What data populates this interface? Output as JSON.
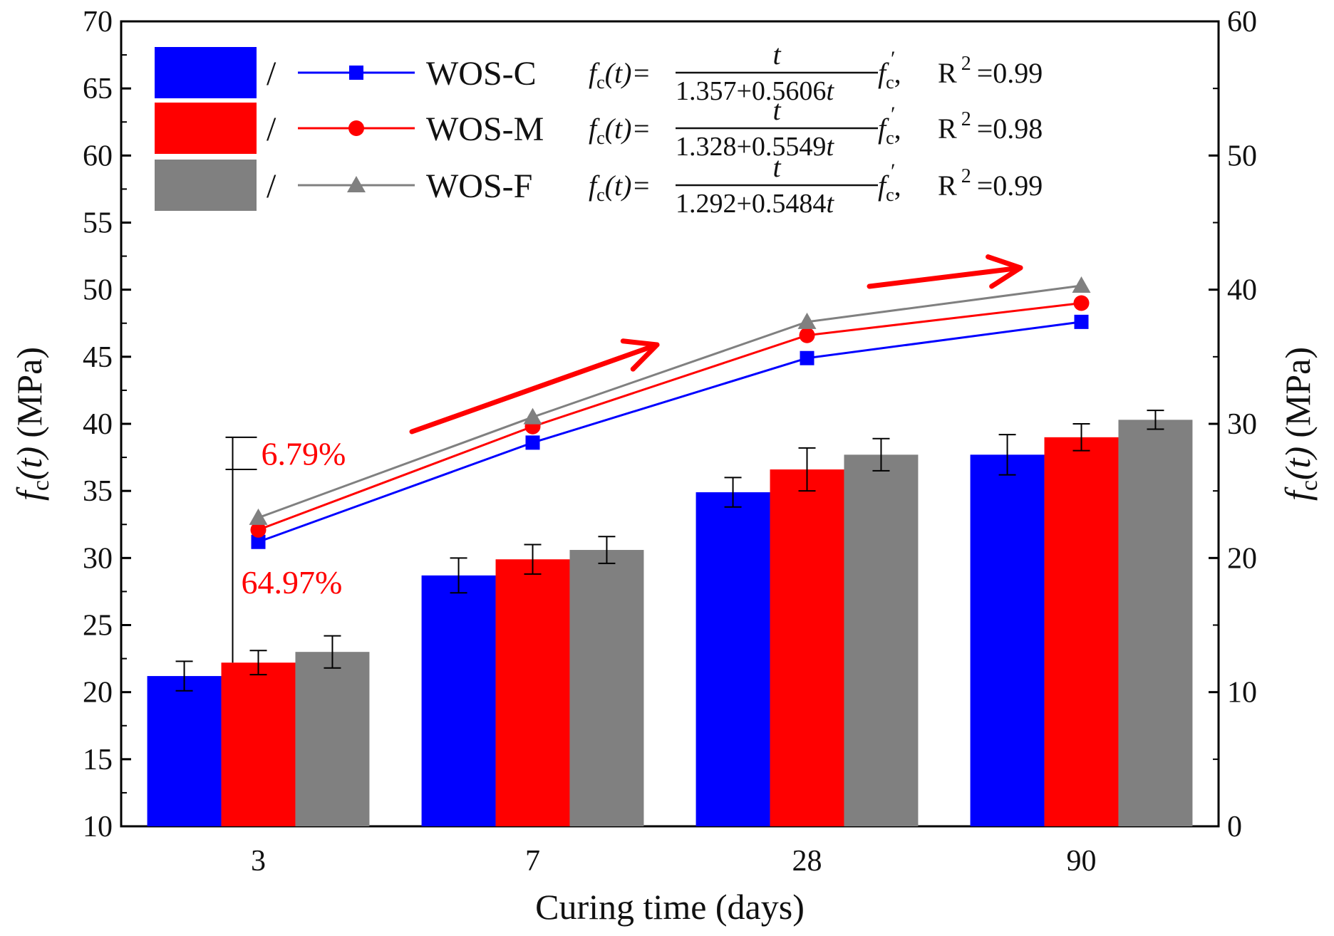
{
  "chart_data": {
    "type": "bar",
    "xlabel": "Curing time (days)",
    "ylabel_left": "(MPa)",
    "ylabel_right": "(MPa)",
    "ylabel_symbol": "f",
    "ylabel_subscript": "c",
    "ylabel_arg": "(t)",
    "categories": [
      "3",
      "7",
      "28",
      "90"
    ],
    "ylim_left": [
      10,
      70
    ],
    "ylim_right": [
      0,
      60
    ],
    "yticks_left": [
      "10",
      "15",
      "20",
      "25",
      "30",
      "35",
      "40",
      "45",
      "50",
      "55",
      "60",
      "65",
      "70"
    ],
    "yticks_right": [
      "0",
      "10",
      "20",
      "30",
      "40",
      "50",
      "60"
    ],
    "bar_axis": "left",
    "line_axis": "right",
    "series": [
      {
        "name": "WOS-C",
        "color": "#0000ff",
        "marker": "square",
        "bar_values": [
          21.2,
          28.7,
          34.9,
          37.7
        ],
        "bar_errors": [
          1.1,
          1.3,
          1.1,
          1.5
        ],
        "line_values": [
          21.2,
          28.6,
          34.9,
          37.6
        ],
        "formula_denominator": "1.357+0.5606",
        "r2": "=0.99"
      },
      {
        "name": "WOS-M",
        "color": "#ff0000",
        "marker": "circle",
        "bar_values": [
          22.2,
          29.9,
          36.6,
          39.0
        ],
        "bar_errors": [
          0.9,
          1.1,
          1.6,
          1.0
        ],
        "line_values": [
          22.1,
          29.8,
          36.6,
          39.0
        ],
        "formula_denominator": "1.328+0.5549",
        "r2": "=0.98"
      },
      {
        "name": "WOS-F",
        "color": "#808080",
        "marker": "triangle",
        "bar_values": [
          23.0,
          30.6,
          37.7,
          40.3
        ],
        "bar_errors": [
          1.2,
          1.0,
          1.2,
          0.7
        ],
        "line_values": [
          23.0,
          30.5,
          37.6,
          40.3
        ],
        "formula_denominator": "1.292+0.5484",
        "r2": "=0.99"
      }
    ],
    "annotations": {
      "pct_upper": "6.79%",
      "pct_lower": "64.97%",
      "annotation_color": "#ff0000",
      "bracket_top_value": 39.0,
      "bracket_mid_value": 36.6,
      "bracket_bottom_value": 22.2
    },
    "legend": {
      "separator": "/",
      "formula_lhs_symbol": "f",
      "formula_lhs_sub": "c",
      "formula_lhs_arg": "(t)=",
      "formula_num": "t",
      "formula_var": "t",
      "formula_tail_symbol": "f",
      "formula_tail_sub": "c",
      "r2_label": "R",
      "r2_sup": "2"
    }
  }
}
